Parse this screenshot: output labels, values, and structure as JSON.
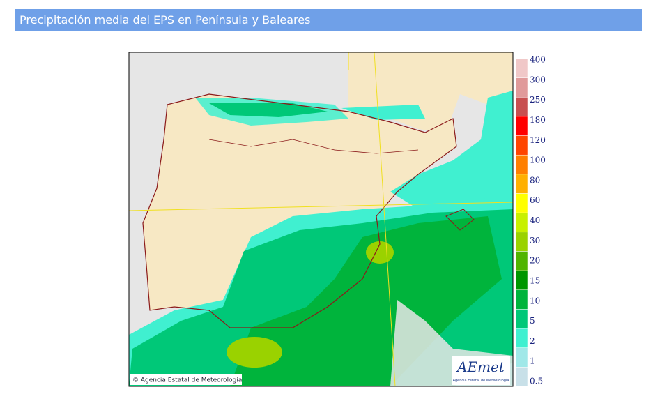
{
  "header": {
    "title": "Precipitación media del EPS en Península y Baleares"
  },
  "map": {
    "copyright": "© Agencia Estatal de Meteorología",
    "logo": "AEmet",
    "logo_subtitle": "Agencia Estatal de Meteorología"
  },
  "legend": {
    "items": [
      {
        "label": 400,
        "color": "#f0c8c8"
      },
      {
        "label": 300,
        "color": "#e09a9a"
      },
      {
        "label": 250,
        "color": "#c85050"
      },
      {
        "label": 180,
        "color": "#ff0000"
      },
      {
        "label": 120,
        "color": "#ff4500"
      },
      {
        "label": 100,
        "color": "#ff7f00"
      },
      {
        "label": 80,
        "color": "#ffb000"
      },
      {
        "label": 60,
        "color": "#ffff00"
      },
      {
        "label": 40,
        "color": "#c8f000"
      },
      {
        "label": 30,
        "color": "#9ad200"
      },
      {
        "label": 20,
        "color": "#50b400"
      },
      {
        "label": 15,
        "color": "#009600"
      },
      {
        "label": 10,
        "color": "#00b43c"
      },
      {
        "label": 5,
        "color": "#00c878"
      },
      {
        "label": 2,
        "color": "#40f0d0"
      },
      {
        "label": 1,
        "color": "#a0e8e8"
      },
      {
        "label": 0.5,
        "color": "#c8e0e8"
      }
    ]
  }
}
